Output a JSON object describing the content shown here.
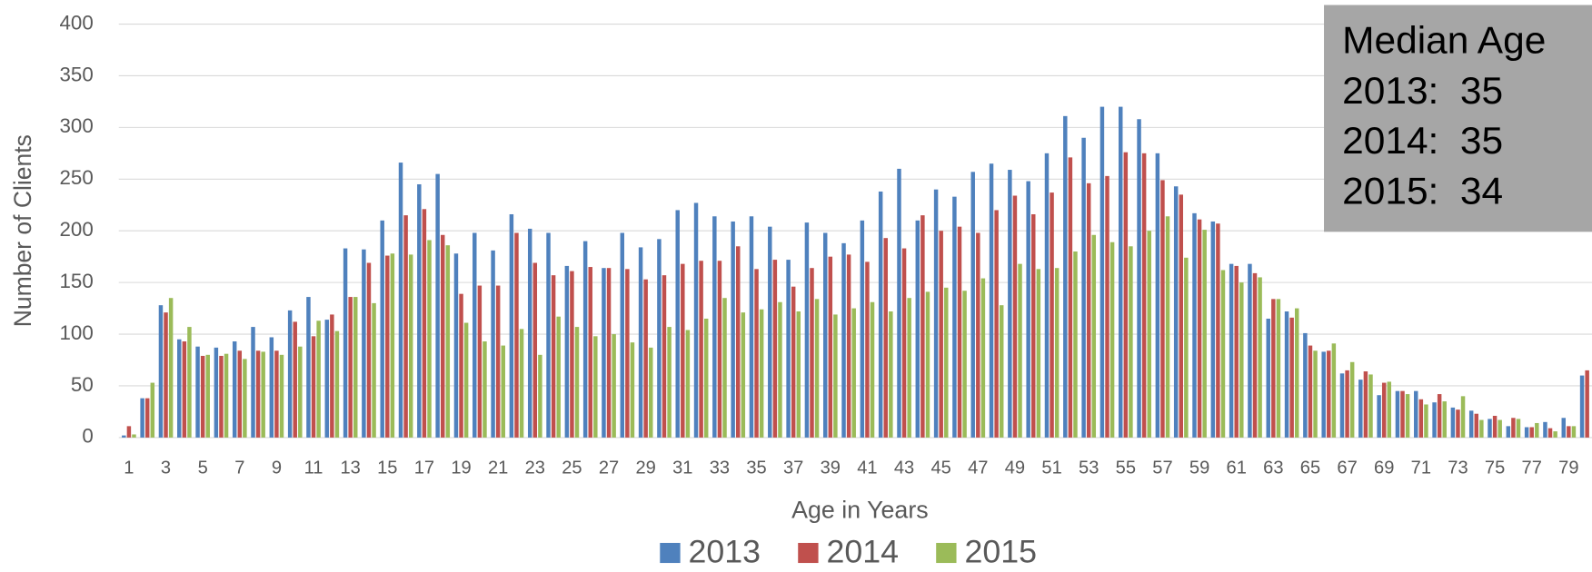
{
  "chart_data": {
    "type": "bar",
    "x_label": "Age in Years",
    "y_label": "Number of Clients",
    "annotation": [
      "Median Age",
      "2013:  35",
      "2014:  35",
      "2015:  34"
    ],
    "categories": [
      "1",
      null,
      "3",
      null,
      "5",
      null,
      "7",
      null,
      "9",
      null,
      "11",
      null,
      "13",
      null,
      "15",
      null,
      "17",
      null,
      "19",
      null,
      "21",
      null,
      "23",
      null,
      "25",
      null,
      "27",
      null,
      "29",
      null,
      "31",
      null,
      "33",
      null,
      "35",
      null,
      "37",
      null,
      "39",
      null,
      "41",
      null,
      "43",
      null,
      "45",
      null,
      "47",
      null,
      "49",
      null,
      "51",
      null,
      "53",
      null,
      "55",
      null,
      "57",
      null,
      "59",
      null,
      "61",
      null,
      "63",
      null,
      "65",
      null,
      "67",
      null,
      "69",
      null,
      "71",
      null,
      "73",
      null,
      "75",
      null,
      "77",
      null,
      "79",
      null
    ],
    "series": [
      {
        "name": "2013",
        "color": "#4f81bd",
        "values": [
          2,
          38,
          128,
          95,
          88,
          87,
          93,
          107,
          97,
          123,
          136,
          114,
          183,
          182,
          210,
          266,
          245,
          255,
          178,
          198,
          181,
          216,
          202,
          198,
          166,
          190,
          164,
          198,
          184,
          192,
          220,
          227,
          214,
          209,
          214,
          204,
          172,
          208,
          198,
          188,
          210,
          238,
          260,
          210,
          240,
          233,
          257,
          265,
          259,
          248,
          275,
          311,
          290,
          320,
          320,
          308,
          275,
          243,
          217,
          209,
          168,
          168,
          115,
          122,
          101,
          83,
          62,
          56,
          41,
          45,
          45,
          34,
          29,
          26,
          18,
          11,
          10,
          15,
          19,
          60
        ]
      },
      {
        "name": "2014",
        "color": "#c0504d",
        "values": [
          11,
          38,
          121,
          93,
          79,
          79,
          84,
          84,
          84,
          112,
          98,
          119,
          136,
          169,
          176,
          215,
          221,
          196,
          139,
          147,
          147,
          198,
          169,
          157,
          161,
          165,
          164,
          163,
          153,
          157,
          168,
          171,
          171,
          185,
          163,
          172,
          146,
          164,
          175,
          177,
          170,
          193,
          183,
          215,
          200,
          204,
          198,
          220,
          234,
          216,
          237,
          271,
          246,
          253,
          276,
          275,
          249,
          235,
          211,
          207,
          166,
          159,
          134,
          116,
          89,
          84,
          65,
          64,
          53,
          45,
          37,
          42,
          27,
          23,
          21,
          19,
          10,
          9,
          11,
          65
        ]
      },
      {
        "name": "2015",
        "color": "#9bbb59",
        "values": [
          3,
          53,
          135,
          107,
          80,
          81,
          76,
          83,
          80,
          88,
          113,
          103,
          136,
          130,
          178,
          177,
          191,
          186,
          111,
          93,
          89,
          105,
          80,
          117,
          107,
          98,
          100,
          92,
          87,
          107,
          104,
          115,
          135,
          121,
          124,
          131,
          122,
          134,
          119,
          125,
          131,
          122,
          135,
          141,
          145,
          142,
          154,
          128,
          168,
          163,
          164,
          180,
          196,
          189,
          185,
          200,
          214,
          174,
          201,
          162,
          150,
          155,
          134,
          125,
          84,
          91,
          73,
          61,
          54,
          42,
          32,
          35,
          40,
          17,
          17,
          18,
          14,
          6,
          11,
          null
        ]
      }
    ],
    "ylim": [
      0,
      400
    ],
    "yticks": [
      0,
      50,
      100,
      150,
      200,
      250,
      300,
      350,
      400
    ],
    "grid": true,
    "legend": "bottom"
  }
}
